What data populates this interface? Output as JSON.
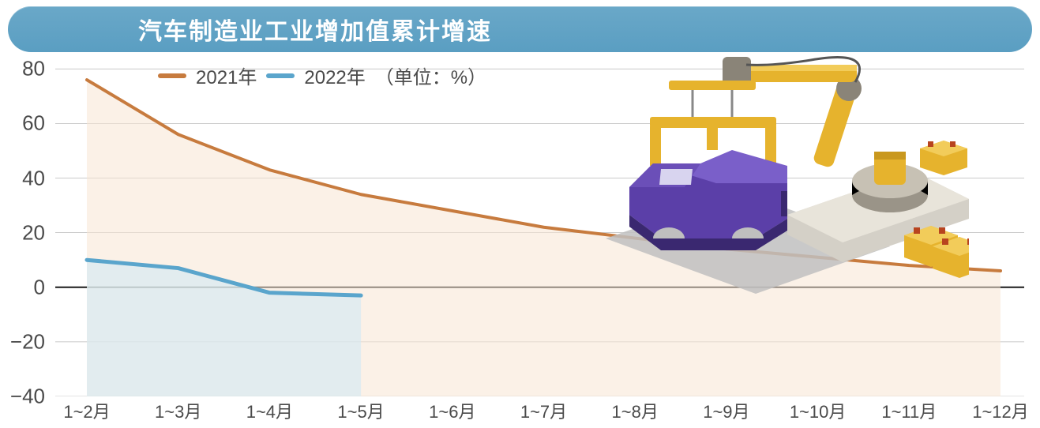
{
  "title": "汽车制造业工业增加值累计增速",
  "legend": {
    "series1_label": "2021年",
    "series2_label": "2022年",
    "unit_label": "（单位：%）"
  },
  "chart": {
    "type": "line",
    "background_color": "#ffffff",
    "title_bg_color": "#5fa3c6",
    "title_text_color": "#ffffff",
    "title_fontsize": 30,
    "axis_label_fontsize": 24,
    "ylim": [
      -40,
      85
    ],
    "y_ticks": [
      -40,
      -20,
      0,
      20,
      40,
      60,
      80
    ],
    "zero_line_color": "#1a1a1a",
    "zero_line_width": 2,
    "grid_color": "#b8b8b8",
    "grid_width": 0.8,
    "categories": [
      "1~2月",
      "1~3月",
      "1~4月",
      "1~5月",
      "1~6月",
      "1~7月",
      "1~8月",
      "1~9月",
      "1~10月",
      "1~11月",
      "1~12月"
    ],
    "series": [
      {
        "name": "2021年",
        "color": "#c77b3e",
        "fill_color": "#f8e6d4",
        "fill_opacity": 0.55,
        "line_width": 4,
        "values": [
          76,
          56,
          43,
          34,
          28,
          22,
          18,
          14,
          11,
          8,
          6
        ]
      },
      {
        "name": "2022年",
        "color": "#5aa5cc",
        "fill_color": "#d4e9f3",
        "fill_opacity": 0.65,
        "line_width": 5,
        "values": [
          10,
          7,
          -2,
          -3
        ]
      }
    ]
  },
  "illustration": {
    "car_body_color": "#5b3fa8",
    "car_shadow_color": "#3a2870",
    "robot_arm_color": "#e6b32d",
    "robot_base_color": "#d4d0c7",
    "robot_joint_color": "#8a8478",
    "hoist_bar_color": "#e6b32d",
    "battery_color": "#e6b32d",
    "battery_terminal_color": "#b8441f",
    "floor_shadow_color": "#bfbfbf",
    "cable_color": "#555555"
  }
}
